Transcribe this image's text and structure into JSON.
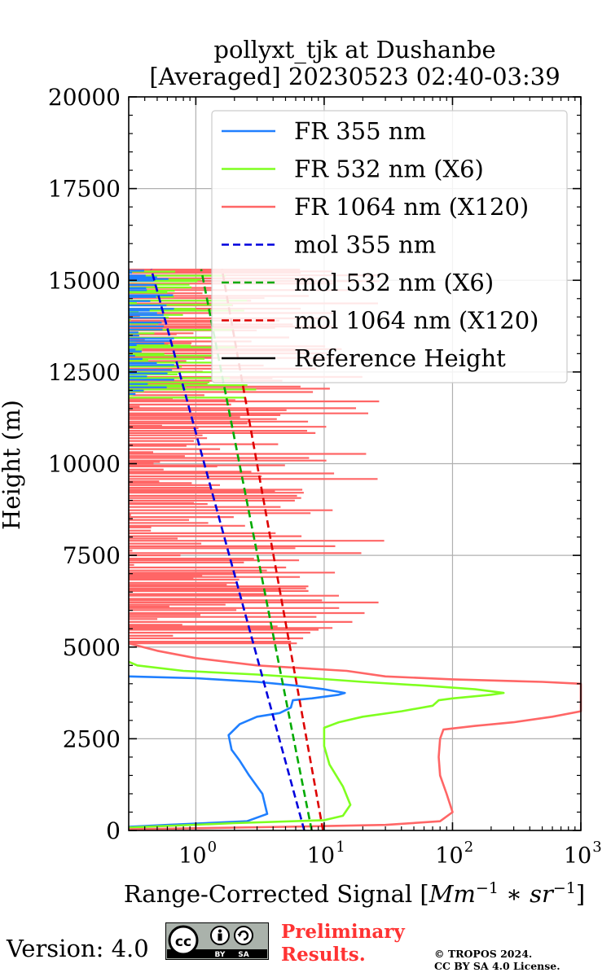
{
  "chart_data": {
    "type": "line",
    "title": [
      "pollyxt_tjk at Dushanbe",
      "[Averaged] 20230523 02:40-03:39"
    ],
    "xlabel_text": "Range-Corrected Signal ",
    "xlabel_math": "[Mm^-1 * sr^-1]",
    "ylabel": "Height (m)",
    "x_scale": "log",
    "xlim": [
      0.3,
      1000
    ],
    "ylim": [
      0,
      20000
    ],
    "x_ticks": [
      {
        "value": 1,
        "base": "10",
        "exp": "0"
      },
      {
        "value": 10,
        "base": "10",
        "exp": "1"
      },
      {
        "value": 100,
        "base": "10",
        "exp": "2"
      },
      {
        "value": 1000,
        "base": "10",
        "exp": "3"
      }
    ],
    "y_ticks": [
      "0",
      "2500",
      "5000",
      "7500",
      "10000",
      "12500",
      "15000",
      "17500",
      "20000"
    ],
    "grid": true,
    "legend_position": "top-right",
    "series": [
      {
        "name": "FR 355 nm",
        "color": "#1f7fff",
        "style": "solid",
        "points": [
          [
            0.3,
            100
          ],
          [
            0.6,
            150
          ],
          [
            2.5,
            250
          ],
          [
            3.6,
            450
          ],
          [
            3.3,
            1000
          ],
          [
            2.6,
            1500
          ],
          [
            2.2,
            1900
          ],
          [
            1.9,
            2200
          ],
          [
            1.8,
            2600
          ],
          [
            2.2,
            2900
          ],
          [
            3.0,
            3100
          ],
          [
            4.5,
            3200
          ],
          [
            5.5,
            3350
          ],
          [
            5.7,
            3550
          ],
          [
            8,
            3600
          ],
          [
            13,
            3700
          ],
          [
            14.5,
            3750
          ],
          [
            10,
            3850
          ],
          [
            6,
            3950
          ],
          [
            3,
            4050
          ],
          [
            1,
            4150
          ],
          [
            0.3,
            4200
          ]
        ]
      },
      {
        "name": "FR 532 nm (X6)",
        "color": "#7fff1f",
        "style": "solid",
        "points": [
          [
            0.3,
            80
          ],
          [
            2,
            200
          ],
          [
            10,
            280
          ],
          [
            14,
            400
          ],
          [
            16,
            700
          ],
          [
            14,
            1200
          ],
          [
            11,
            1800
          ],
          [
            10,
            2300
          ],
          [
            10,
            2800
          ],
          [
            13,
            2950
          ],
          [
            20,
            3100
          ],
          [
            40,
            3250
          ],
          [
            70,
            3400
          ],
          [
            78,
            3550
          ],
          [
            100,
            3600
          ],
          [
            200,
            3700
          ],
          [
            250,
            3750
          ],
          [
            150,
            3850
          ],
          [
            60,
            3950
          ],
          [
            20,
            4050
          ],
          [
            8,
            4150
          ],
          [
            3,
            4250
          ],
          [
            0.8,
            4350
          ],
          [
            0.35,
            4500
          ],
          [
            0.3,
            4600
          ]
        ]
      },
      {
        "name": "FR 1064 nm (X120)",
        "color": "#ff6666",
        "style": "solid",
        "points": [
          [
            0.3,
            30
          ],
          [
            5,
            100
          ],
          [
            30,
            150
          ],
          [
            80,
            250
          ],
          [
            100,
            500
          ],
          [
            90,
            1000
          ],
          [
            80,
            1500
          ],
          [
            78,
            2000
          ],
          [
            80,
            2500
          ],
          [
            85,
            2750
          ],
          [
            150,
            2850
          ],
          [
            300,
            2950
          ],
          [
            600,
            3100
          ],
          [
            1000,
            3250
          ],
          [
            1000,
            4000
          ],
          [
            500,
            4050
          ],
          [
            100,
            4120
          ],
          [
            30,
            4200
          ],
          [
            15,
            4350
          ],
          [
            3,
            4500
          ],
          [
            1,
            4700
          ],
          [
            0.5,
            4900
          ],
          [
            0.3,
            5100
          ]
        ]
      },
      {
        "name": "mol 355 nm",
        "color": "#0000dd",
        "style": "dashed",
        "points": [
          [
            7.0,
            0
          ],
          [
            0.45,
            15300
          ]
        ]
      },
      {
        "name": "mol 532 nm (X6)",
        "color": "#00aa00",
        "style": "dashed",
        "points": [
          [
            8.0,
            0
          ],
          [
            1.1,
            15300
          ]
        ]
      },
      {
        "name": "mol 1064 nm (X120)",
        "color": "#dd0000",
        "style": "dashed",
        "points": [
          [
            9.8,
            0
          ],
          [
            1.6,
            15300
          ]
        ]
      },
      {
        "name": "Reference Height",
        "color": "#000000",
        "style": "solid",
        "points": []
      }
    ]
  },
  "footer": {
    "version": "Version: 4.0",
    "cc_left": "cc",
    "cc_by": "BY",
    "cc_sa": "SA",
    "preliminary": [
      "Preliminary",
      "Results."
    ],
    "copyright": [
      "© TROPOS 2024.",
      "CC BY SA 4.0 License."
    ]
  }
}
